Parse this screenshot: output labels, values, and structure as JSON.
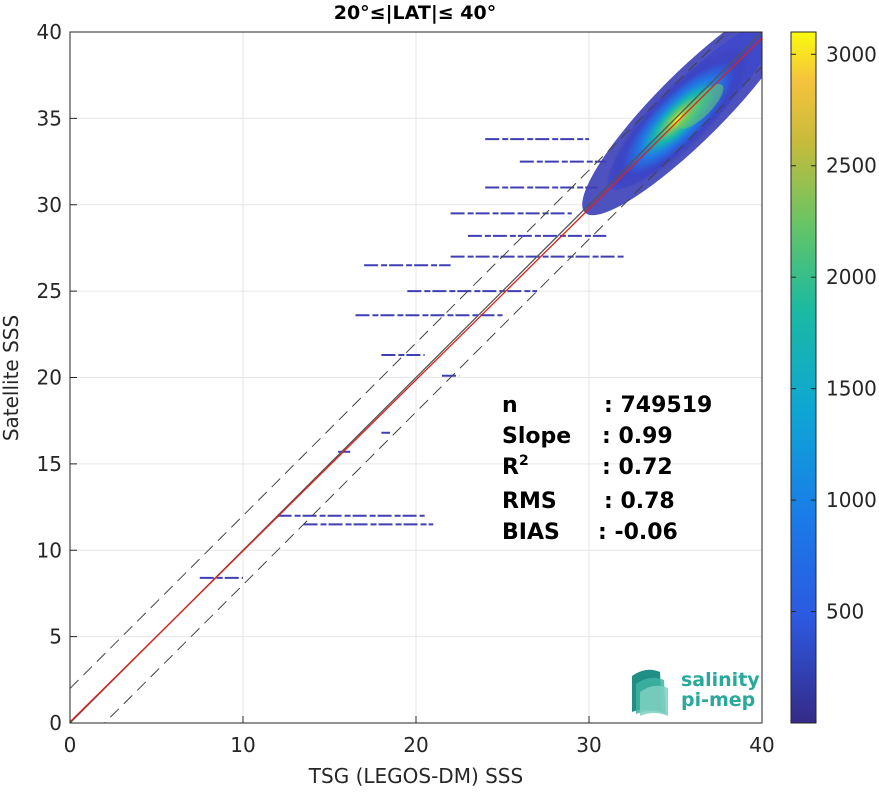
{
  "chart_data": {
    "type": "heatmap",
    "title": "20°≤|LAT|≤ 40°",
    "xlabel": "TSG (LEGOS-DM) SSS",
    "ylabel": "Satellite SSS",
    "xlim": [
      0,
      40
    ],
    "ylim": [
      0,
      40
    ],
    "xticks": [
      "0",
      "10",
      "20",
      "30",
      "40"
    ],
    "yticks": [
      "0",
      "5",
      "10",
      "15",
      "20",
      "25",
      "30",
      "35",
      "40"
    ],
    "grid": true,
    "colormap": "parula",
    "colorbar": {
      "range": [
        0,
        3100
      ],
      "ticks": [
        "500",
        "1000",
        "1500",
        "2000",
        "2500",
        "3000"
      ]
    },
    "reference_lines": [
      {
        "name": "1:1 line",
        "slope": 1,
        "intercept": 0,
        "color": "#555555",
        "style": "solid"
      },
      {
        "name": "regression",
        "slope": 0.99,
        "intercept": 0.06,
        "color": "#e0201b",
        "style": "solid"
      },
      {
        "name": "+2 envelope",
        "slope": 1,
        "intercept": 2,
        "color": "#444444",
        "style": "dashed"
      },
      {
        "name": "-2 envelope",
        "slope": 1,
        "intercept": -2,
        "color": "#444444",
        "style": "dashed"
      }
    ],
    "density_core": {
      "x": 35.2,
      "y": 35.0,
      "peak": 3100
    },
    "scatter_segments": [
      {
        "x": [
          12.0,
          20.5
        ],
        "y": 12.0
      },
      {
        "x": [
          13.5,
          21.0
        ],
        "y": 11.5
      },
      {
        "x": [
          7.5,
          10.0
        ],
        "y": 8.4
      },
      {
        "x": [
          18.0,
          20.5
        ],
        "y": 21.3
      },
      {
        "x": [
          16.5,
          25.0
        ],
        "y": 23.6
      },
      {
        "x": [
          19.5,
          27.0
        ],
        "y": 25.0
      },
      {
        "x": [
          17.0,
          22.0
        ],
        "y": 26.5
      },
      {
        "x": [
          22.0,
          32.0
        ],
        "y": 27.0
      },
      {
        "x": [
          23.0,
          31.0
        ],
        "y": 28.2
      },
      {
        "x": [
          22.0,
          29.0
        ],
        "y": 29.5
      },
      {
        "x": [
          24.0,
          30.5
        ],
        "y": 31.0
      },
      {
        "x": [
          26.0,
          31.0
        ],
        "y": 32.5
      },
      {
        "x": [
          24.0,
          30.0
        ],
        "y": 33.8
      },
      {
        "x": [
          18.0,
          18.5
        ],
        "y": 16.8
      },
      {
        "x": [
          15.5,
          16.2
        ],
        "y": 15.7
      },
      {
        "x": [
          21.5,
          22.5
        ],
        "y": 20.1
      }
    ],
    "stats": [
      {
        "label": "n",
        "value": ": 749519"
      },
      {
        "label": "Slope",
        "value": ": 0.99"
      },
      {
        "label": "R",
        "sup": "2",
        "value": ": 0.72"
      },
      {
        "label": "RMS",
        "value": ": 0.78"
      },
      {
        "label": "BIAS",
        "value": ": -0.06"
      }
    ]
  },
  "logo": {
    "line1": "salinity",
    "line2": "pi-mep",
    "color": "#2aa89a"
  }
}
